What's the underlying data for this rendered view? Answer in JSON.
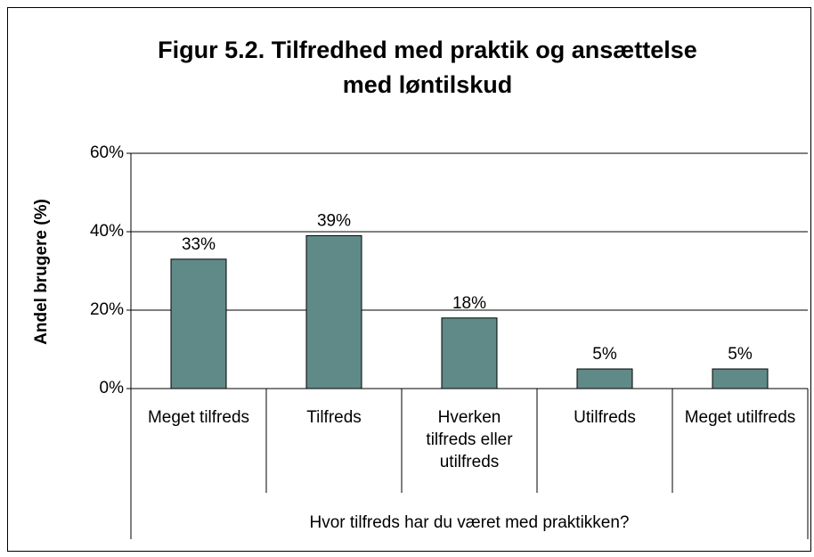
{
  "chart_data": {
    "type": "bar",
    "title": [
      "Figur 5.2. Tilfredhed med praktik og ansættelse",
      "med løntilskud"
    ],
    "y_label": "Andel brugere (%)",
    "x_label": "Hvor tilfreds har du været med praktikken?",
    "categories": [
      "Meget tilfreds",
      "Tilfreds",
      "Hverken tilfreds eller utilfreds",
      "Utilfreds",
      "Meget utilfreds"
    ],
    "values": [
      33,
      39,
      18,
      5,
      5
    ],
    "value_labels": [
      "33%",
      "39%",
      "18%",
      "5%",
      "5%"
    ],
    "color": "#5f8a87",
    "ylim": [
      0,
      60
    ],
    "yticks": [
      {
        "value": 0,
        "label": "0%"
      },
      {
        "value": 20,
        "label": "20%"
      },
      {
        "value": 40,
        "label": "40%"
      },
      {
        "value": 60,
        "label": "60%"
      }
    ],
    "grid": true
  }
}
